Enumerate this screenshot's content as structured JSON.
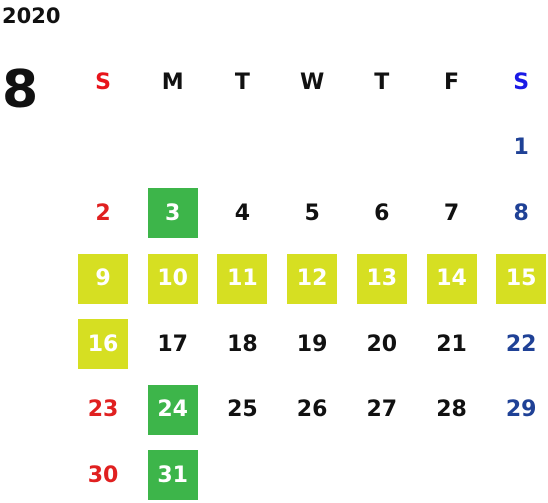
{
  "calendar": {
    "year": "2020",
    "month": 8,
    "weekdays": [
      "S",
      "M",
      "T",
      "W",
      "T",
      "F",
      "S"
    ],
    "header_colors": [
      "#e8141b",
      "#111111",
      "#111111",
      "#111111",
      "#111111",
      "#111111",
      "#1a1ae6"
    ],
    "day_colors": [
      "#e02020",
      "#111111",
      "#111111",
      "#111111",
      "#111111",
      "#111111",
      "#1f4196"
    ],
    "highlight_colors": {
      "green": "#3db54a",
      "yellow": "#d6df22"
    },
    "weeks": [
      [
        null,
        null,
        null,
        null,
        null,
        null,
        {
          "day": 1
        }
      ],
      [
        {
          "day": 2
        },
        {
          "day": 3,
          "highlight": "green"
        },
        {
          "day": 4
        },
        {
          "day": 5
        },
        {
          "day": 6
        },
        {
          "day": 7
        },
        {
          "day": 8
        }
      ],
      [
        {
          "day": 9,
          "highlight": "yellow"
        },
        {
          "day": 10,
          "highlight": "yellow"
        },
        {
          "day": 11,
          "highlight": "yellow"
        },
        {
          "day": 12,
          "highlight": "yellow"
        },
        {
          "day": 13,
          "highlight": "yellow"
        },
        {
          "day": 14,
          "highlight": "yellow"
        },
        {
          "day": 15,
          "highlight": "yellow"
        }
      ],
      [
        {
          "day": 16,
          "highlight": "yellow"
        },
        {
          "day": 17
        },
        {
          "day": 18
        },
        {
          "day": 19
        },
        {
          "day": 20
        },
        {
          "day": 21
        },
        {
          "day": 22
        }
      ],
      [
        {
          "day": 23
        },
        {
          "day": 24,
          "highlight": "green"
        },
        {
          "day": 25
        },
        {
          "day": 26
        },
        {
          "day": 27
        },
        {
          "day": 28
        },
        {
          "day": 29
        }
      ],
      [
        {
          "day": 30
        },
        {
          "day": 31,
          "highlight": "green"
        },
        null,
        null,
        null,
        null,
        null
      ]
    ]
  }
}
